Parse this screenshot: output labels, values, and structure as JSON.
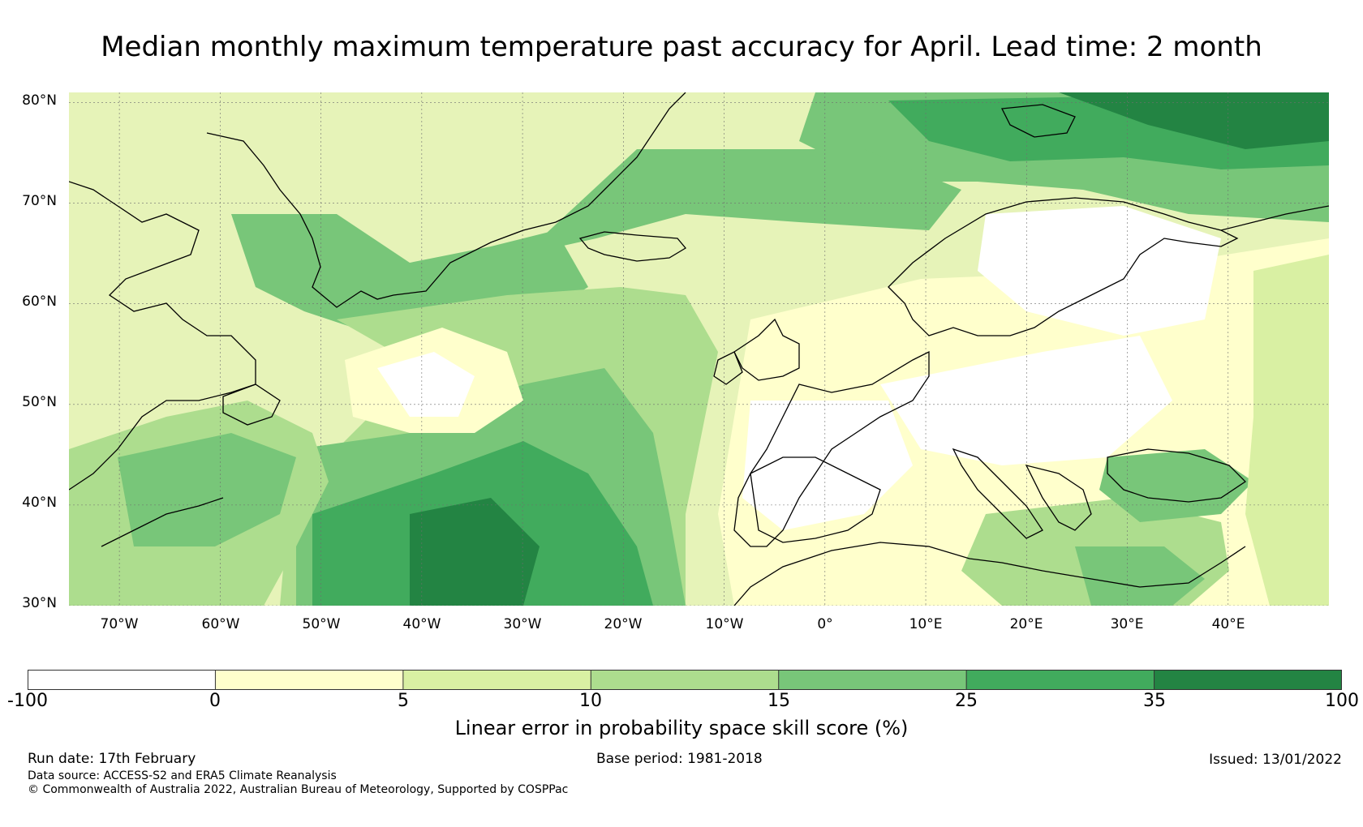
{
  "title": "Median monthly maximum temperature past accuracy for April. Lead time: 2 month",
  "map": {
    "latitude_labels": [
      "80°N",
      "70°N",
      "60°N",
      "50°N",
      "40°N",
      "30°N"
    ],
    "longitude_labels": [
      "70°W",
      "60°W",
      "50°W",
      "40°W",
      "30°W",
      "20°W",
      "10°W",
      "0°",
      "10°E",
      "20°E",
      "30°E",
      "40°E"
    ],
    "latitude_range": [
      30,
      81
    ],
    "longitude_range": [
      -75,
      50
    ],
    "gridlines": true
  },
  "colorbar": {
    "label": "Linear error in probability space skill score (%)",
    "bounds": [
      "-100",
      "0",
      "5",
      "10",
      "15",
      "25",
      "35",
      "100"
    ],
    "colors": [
      "#ffffff",
      "#ffffcc",
      "#d9f0a3",
      "#addd8e",
      "#78c679",
      "#41ab5d",
      "#238443"
    ]
  },
  "footer": {
    "run_date": "Run date: 17th February",
    "base_period": "Base period: 1981-2018",
    "issued": "Issued: 13/01/2022",
    "data_source": "Data source: ACCESS-S2 and ERA5 Climate Reanalysis",
    "copyright": "© Commonwealth of Australia 2022, Australian Bureau of Meteorology, Supported by COSPPac"
  }
}
